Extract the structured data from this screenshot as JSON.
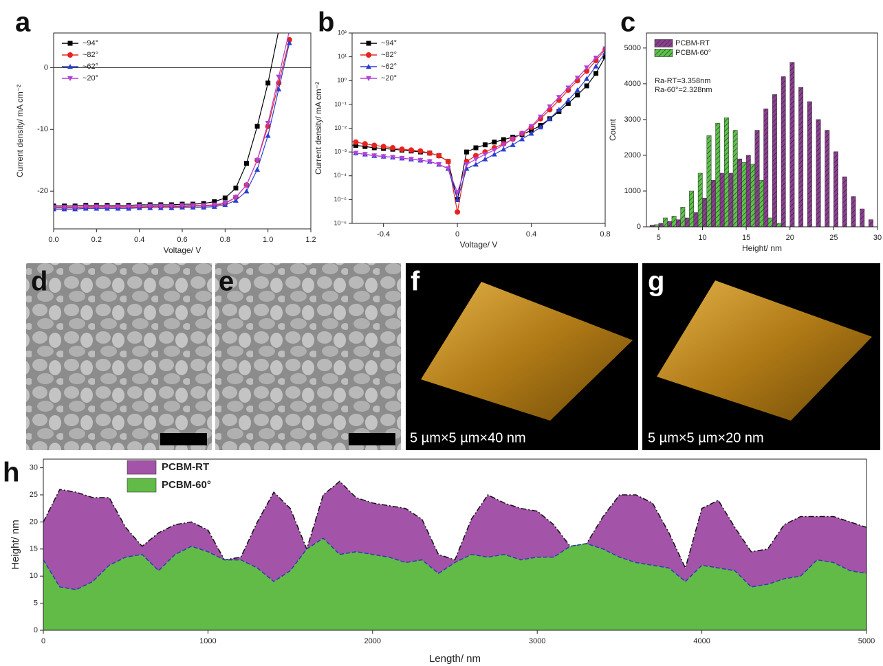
{
  "chart_data": [
    {
      "type": "line",
      "panel": "a",
      "xlabel": "Voltage/ V",
      "ylabel": "Current density/ mA cm⁻²",
      "xlim": [
        0,
        1.2
      ],
      "ylim": [
        -26.1,
        5.6
      ],
      "xticks": [
        {
          "value": 0,
          "label": "0.0"
        },
        0.2,
        0.4,
        0.6,
        0.8,
        {
          "value": 1,
          "label": "1.0"
        },
        1.2
      ],
      "yticks": [
        -20,
        -10,
        0
      ],
      "zero_line": true,
      "legend": "upper left",
      "x": [
        0,
        0.05,
        0.1,
        0.15,
        0.2,
        0.25,
        0.3,
        0.35,
        0.4,
        0.45,
        0.5,
        0.55,
        0.6,
        0.65,
        0.7,
        0.75,
        0.8,
        0.85,
        0.9,
        0.95,
        1,
        1.05,
        1.1
      ],
      "series": [
        {
          "name": "~94°",
          "color": "#000000",
          "marker": "square",
          "values": [
            -22.4,
            -22.4,
            -22.4,
            -22.3,
            -22.3,
            -22.3,
            -22.3,
            -22.3,
            -22.2,
            -22.2,
            -22.2,
            -22.2,
            -22.1,
            -22.1,
            -22,
            -21.7,
            -21.1,
            -19.5,
            -15.5,
            -9.5,
            -2.5,
            6,
            null
          ]
        },
        {
          "name": "~82°",
          "color": "#e8231f",
          "marker": "circle",
          "values": [
            -22.7,
            -22.7,
            -22.7,
            -22.7,
            -22.6,
            -22.6,
            -22.6,
            -22.6,
            -22.6,
            -22.5,
            -22.5,
            -22.5,
            -22.5,
            -22.4,
            -22.4,
            -22.3,
            -22,
            -21,
            -19,
            -15,
            -9.5,
            -2.5,
            4.5
          ]
        },
        {
          "name": "~62°",
          "color": "#2a3fd0",
          "marker": "triangle-up",
          "values": [
            -22.9,
            -22.9,
            -22.9,
            -22.8,
            -22.8,
            -22.8,
            -22.8,
            -22.8,
            -22.7,
            -22.7,
            -22.7,
            -22.7,
            -22.6,
            -22.6,
            -22.6,
            -22.5,
            -22.2,
            -21.5,
            -20,
            -16.5,
            -11,
            -3.5,
            4
          ]
        },
        {
          "name": "~20°",
          "color": "#b340d8",
          "marker": "triangle-down",
          "values": [
            -22.6,
            -22.6,
            -22.6,
            -22.5,
            -22.5,
            -22.5,
            -22.5,
            -22.5,
            -22.4,
            -22.4,
            -22.4,
            -22.4,
            -22.3,
            -22.3,
            -22.3,
            -22.2,
            -21.9,
            -21,
            -19,
            -15,
            -9,
            -1.5,
            6
          ]
        }
      ]
    },
    {
      "type": "line",
      "panel": "b",
      "xlabel": "Voltage/ V",
      "ylabel": "Current density/ mA cm⁻²",
      "xlim": [
        -0.57,
        0.8
      ],
      "ylim": [
        1e-06,
        100
      ],
      "log_y": true,
      "xticks": [
        -0.4,
        0,
        0.4,
        0.8
      ],
      "yticks": [
        {
          "value": 1e-06,
          "label": "10⁻⁶"
        },
        {
          "value": 1e-05,
          "label": "10⁻⁵"
        },
        {
          "value": 0.0001,
          "label": "10⁻⁴"
        },
        {
          "value": 0.001,
          "label": "10⁻³"
        },
        {
          "value": 0.01,
          "label": "10⁻²"
        },
        {
          "value": 0.1,
          "label": "10⁻¹"
        },
        {
          "value": 1,
          "label": "10⁰"
        },
        {
          "value": 10,
          "label": "10¹"
        },
        {
          "value": 100,
          "label": "10²"
        }
      ],
      "legend": "upper left",
      "x": [
        -0.6,
        -0.55,
        -0.5,
        -0.45,
        -0.4,
        -0.35,
        -0.3,
        -0.25,
        -0.2,
        -0.15,
        -0.1,
        -0.05,
        0,
        0.05,
        0.1,
        0.15,
        0.2,
        0.25,
        0.3,
        0.35,
        0.4,
        0.45,
        0.5,
        0.55,
        0.6,
        0.65,
        0.7,
        0.75,
        0.8
      ],
      "series": [
        {
          "name": "~94°",
          "color": "#000000",
          "marker": "square",
          "values": [
            0.002,
            0.0019,
            0.0017,
            0.0015,
            0.0014,
            0.0013,
            0.0012,
            0.0011,
            0.001,
            0.0009,
            0.0007,
            0.0004,
            1e-05,
            0.001,
            0.0015,
            0.002,
            0.0026,
            0.0033,
            0.0042,
            0.0055,
            0.008,
            0.013,
            0.025,
            0.05,
            0.11,
            0.25,
            0.6,
            2,
            10
          ]
        },
        {
          "name": "~82°",
          "color": "#e8231f",
          "marker": "circle",
          "values": [
            0.003,
            0.0026,
            0.0022,
            0.0019,
            0.0017,
            0.0015,
            0.0013,
            0.0012,
            0.0011,
            0.0009,
            0.0007,
            0.0004,
            3e-06,
            0.0004,
            0.0007,
            0.001,
            0.0015,
            0.0022,
            0.0035,
            0.006,
            0.011,
            0.025,
            0.06,
            0.15,
            0.4,
            1,
            2.5,
            7,
            20
          ]
        },
        {
          "name": "~62°",
          "color": "#2a3fd0",
          "marker": "triangle-up",
          "values": [
            0.001,
            0.0009,
            0.0008,
            0.0007,
            0.00065,
            0.0006,
            0.00055,
            0.0005,
            0.00045,
            0.0004,
            0.0003,
            0.0002,
            1e-05,
            0.0002,
            0.0003,
            0.0005,
            0.0008,
            0.0013,
            0.002,
            0.0035,
            0.006,
            0.011,
            0.025,
            0.06,
            0.15,
            0.4,
            1.2,
            4,
            15
          ]
        },
        {
          "name": "~20°",
          "color": "#b340d8",
          "marker": "triangle-down",
          "values": [
            0.001,
            0.0009,
            0.0008,
            0.0007,
            0.00065,
            0.0006,
            0.00055,
            0.0005,
            0.00045,
            0.0004,
            0.0003,
            0.0002,
            2e-05,
            0.0003,
            0.0005,
            0.0008,
            0.0012,
            0.002,
            0.0035,
            0.006,
            0.012,
            0.03,
            0.08,
            0.2,
            0.5,
            1.3,
            3.5,
            9,
            22
          ]
        }
      ]
    },
    {
      "type": "histogram",
      "panel": "c",
      "xlabel": "Height/ nm",
      "ylabel": "Count",
      "xlim": [
        3.6,
        30
      ],
      "ylim": [
        0,
        5420
      ],
      "xticks": [
        5,
        10,
        15,
        20,
        25,
        30
      ],
      "yticks": [
        0,
        1000,
        2000,
        3000,
        4000,
        5000
      ],
      "legend": "upper left",
      "annotations": [
        "Ra-RT=3.358nm",
        "Ra-60°=2.328nm"
      ],
      "bins": [
        4,
        5,
        6,
        7,
        8,
        9,
        10,
        11,
        12,
        13,
        14,
        15,
        16,
        17,
        18,
        19,
        20,
        21,
        22,
        23,
        24,
        25,
        26,
        27,
        28,
        29,
        30
      ],
      "series": [
        {
          "name": "PCBM-RT",
          "color": "#8a3f8f",
          "values": [
            50,
            100,
            150,
            200,
            250,
            400,
            800,
            1300,
            1500,
            1500,
            1900,
            2000,
            2700,
            3300,
            3700,
            4200,
            4600,
            3900,
            3500,
            3000,
            2700,
            2100,
            1400,
            850,
            500,
            200
          ]
        },
        {
          "name": "PCBM-60°",
          "color": "#5cc24a",
          "values": [
            60,
            250,
            300,
            550,
            1000,
            1500,
            2550,
            2900,
            3050,
            2700,
            1800,
            1750,
            1300,
            250,
            100,
            0,
            0,
            0,
            0,
            0,
            0,
            0,
            0,
            0,
            0,
            0
          ]
        }
      ]
    },
    {
      "type": "area",
      "panel": "h",
      "xlabel": "Length/ nm",
      "ylabel": "Height/ nm",
      "xlim": [
        0,
        5000
      ],
      "ylim": [
        0,
        31.6
      ],
      "xticks": [
        0,
        1000,
        2000,
        3000,
        4000,
        5000
      ],
      "yticks": [
        0,
        5,
        10,
        15,
        20,
        25,
        30
      ],
      "legend": "upper left",
      "x": [
        0,
        100,
        200,
        300,
        400,
        500,
        600,
        700,
        800,
        900,
        1000,
        1100,
        1200,
        1300,
        1400,
        1500,
        1600,
        1700,
        1800,
        1900,
        2000,
        2100,
        2200,
        2300,
        2400,
        2500,
        2600,
        2700,
        2800,
        2900,
        3000,
        3100,
        3200,
        3300,
        3400,
        3500,
        3600,
        3700,
        3800,
        3900,
        4000,
        4100,
        4200,
        4300,
        4400,
        4500,
        4600,
        4700,
        4800,
        4900,
        5000
      ],
      "series": [
        {
          "name": "PCBM-RT",
          "color": "#a353a8",
          "values": [
            20,
            26,
            25.5,
            24.5,
            24.5,
            19,
            15.5,
            18,
            19.5,
            20,
            18.5,
            13,
            13.5,
            20,
            25.5,
            22.5,
            15,
            25,
            27.5,
            24.5,
            23.5,
            23,
            22.5,
            20.5,
            14,
            13,
            20.5,
            25,
            23.5,
            22.5,
            22,
            19.5,
            15.5,
            16,
            21,
            25,
            25,
            23.5,
            18,
            11.5,
            22.5,
            24,
            19,
            14.5,
            15,
            19.5,
            21,
            21,
            21,
            20,
            19
          ]
        },
        {
          "name": "PCBM-60°",
          "color": "#62bb47",
          "values": [
            13,
            8,
            7.5,
            9,
            12,
            13.5,
            14,
            11,
            14,
            15.5,
            14.5,
            13,
            13,
            11.5,
            9,
            11,
            15,
            17,
            14,
            14.5,
            14,
            13.5,
            12.5,
            13,
            10.5,
            12.5,
            14,
            13.5,
            14,
            13,
            13.5,
            13.5,
            15.5,
            16,
            15,
            13.5,
            12.5,
            12,
            11.5,
            9,
            12,
            11.5,
            11,
            8,
            8.5,
            9.5,
            10,
            13,
            12.5,
            11,
            10.5
          ]
        }
      ]
    }
  ],
  "images": [
    {
      "panel": "d"
    },
    {
      "panel": "e"
    },
    {
      "panel": "f",
      "caption": "5 µm×5 µm×40 nm"
    },
    {
      "panel": "g",
      "caption": "5 µm×5 µm×20 nm"
    }
  ]
}
